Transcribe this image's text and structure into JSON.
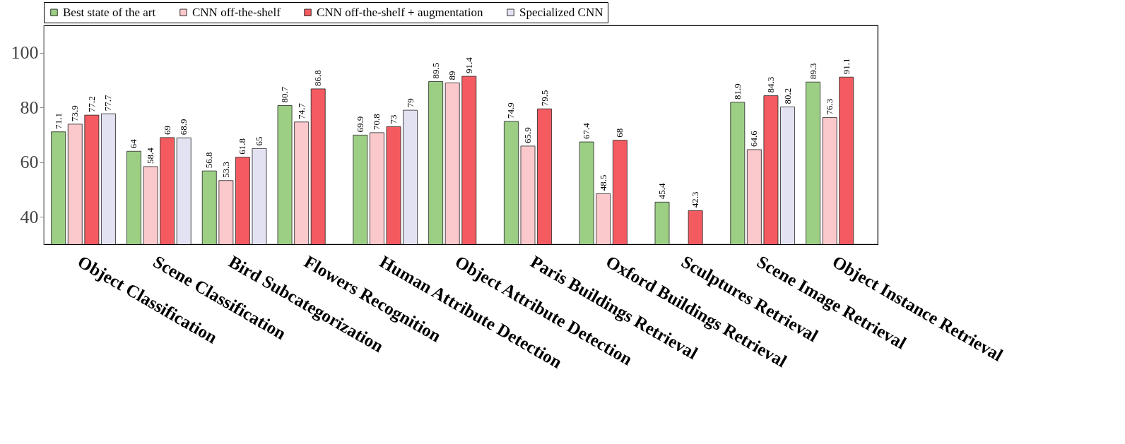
{
  "chart_data": {
    "type": "bar",
    "categories": [
      "Object Classification",
      "Scene Classification",
      "Bird Subcategorization",
      "Flowers Recognition",
      "Human Attribute Detection",
      "Object Attribute Detection",
      "Paris Buildings Retrieval",
      "Oxford Buildings Retrieval",
      "Sculptures Retrieval",
      "Scene Image Retrieval",
      "Object Instance Retrieval"
    ],
    "series": [
      {
        "name": "Best state of the art",
        "color": "#9ccf84",
        "values": [
          71.1,
          64,
          56.8,
          80.7,
          69.9,
          89.5,
          74.9,
          67.4,
          45.4,
          81.9,
          89.3
        ]
      },
      {
        "name": "CNN off-the-shelf",
        "color": "#fbc8cc",
        "values": [
          73.9,
          58.4,
          53.3,
          74.7,
          70.8,
          89,
          65.9,
          48.5,
          null,
          64.6,
          76.3
        ]
      },
      {
        "name": "CNN off-the-shelf + augmentation",
        "color": "#f45b60",
        "values": [
          77.2,
          69,
          61.8,
          86.8,
          73,
          91.4,
          79.5,
          68,
          42.3,
          84.3,
          91.1
        ]
      },
      {
        "name": "Specialized CNN",
        "color": "#e3e2f2",
        "values": [
          77.7,
          68.9,
          65,
          null,
          79,
          null,
          null,
          null,
          null,
          80.2,
          null
        ]
      }
    ],
    "ylim": [
      30,
      110
    ],
    "yticks": [
      40,
      60,
      80,
      100
    ],
    "grid": false,
    "legend": "top",
    "data_labels": true
  }
}
